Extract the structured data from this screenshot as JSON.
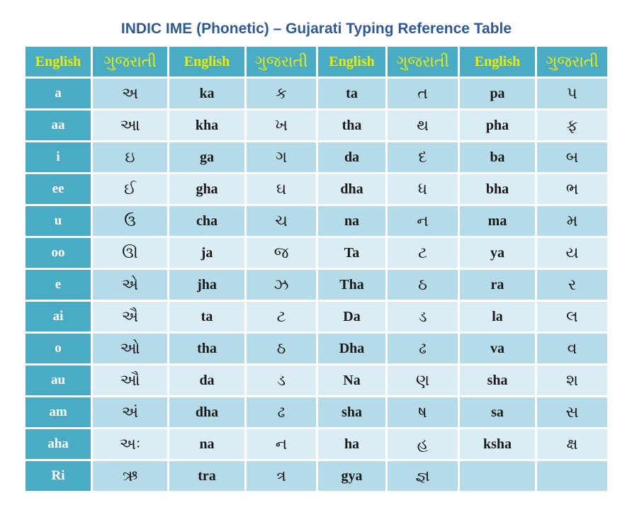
{
  "title": "INDIC IME (Phonetic) – Gujarati Typing Reference Table",
  "table": {
    "header": [
      "English",
      "ગુજરાતી",
      "English",
      "ગુજરાતી",
      "English",
      "ગુજરાતી",
      "English",
      "ગુજરાતી"
    ],
    "rows": [
      [
        "a",
        "અ",
        "ka",
        "ક",
        "ta",
        "ત",
        "pa",
        "પ"
      ],
      [
        "aa",
        "આ",
        "kha",
        "ખ",
        "tha",
        "થ",
        "pha",
        "ફ"
      ],
      [
        "i",
        "ઇ",
        "ga",
        "ગ",
        "da",
        "દ",
        "ba",
        "બ"
      ],
      [
        "ee",
        "ઈ",
        "gha",
        "ઘ",
        "dha",
        "ધ",
        "bha",
        "ભ"
      ],
      [
        "u",
        "ઉ",
        "cha",
        "ચ",
        "na",
        "ન",
        "ma",
        "મ"
      ],
      [
        "oo",
        "ઊ",
        "ja",
        "જ",
        "Ta",
        "ટ",
        "ya",
        "ય"
      ],
      [
        "e",
        "એ",
        "jha",
        "ઝ",
        "Tha",
        "ઠ",
        "ra",
        "ર"
      ],
      [
        "ai",
        "ઐ",
        "ta",
        "ટ",
        "Da",
        "ડ",
        "la",
        "લ"
      ],
      [
        "o",
        "ઓ",
        "tha",
        "ઠ",
        "Dha",
        "ઢ",
        "va",
        "વ"
      ],
      [
        "au",
        "ઔ",
        "da",
        "ડ",
        "Na",
        "ણ",
        "sha",
        "શ"
      ],
      [
        "am",
        "અં",
        "dha",
        "ઢ",
        "sha",
        "ષ",
        "sa",
        "સ"
      ],
      [
        "aha",
        "અઃ",
        "na",
        "ન",
        "ha",
        "હ",
        "ksha",
        "ક્ષ"
      ],
      [
        "Ri",
        "ઋ",
        "tra",
        "ત્ર",
        "gya",
        "જ્ઞ",
        "",
        ""
      ]
    ]
  },
  "colors": {
    "title_text": "#2d5a97",
    "header_bg": "#4aabc5",
    "header_text": "#edec00",
    "key_col_bg": "#4aabc5",
    "key_col_text": "#ffffff",
    "row_odd_bg": "#b5dbe8",
    "row_even_bg": "#daecf4",
    "cell_text": "#1a1a1a",
    "page_bg": "#ffffff"
  }
}
